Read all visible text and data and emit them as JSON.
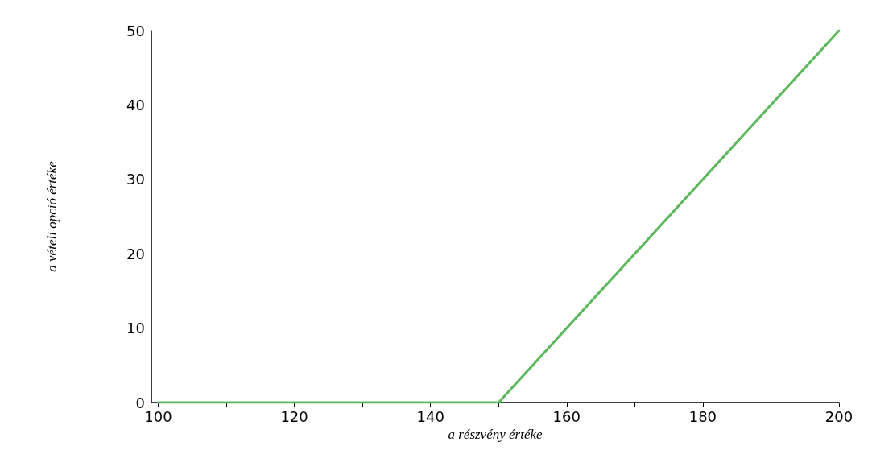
{
  "chart_data": {
    "type": "line",
    "xlabel": "a részvény értéke",
    "ylabel": "a vételi opció értéke",
    "x": [
      100,
      150,
      200
    ],
    "series": [
      {
        "color": "#5cb85c",
        "values": [
          0,
          0,
          50
        ]
      }
    ],
    "xlim": [
      99,
      200
    ],
    "ylim": [
      0,
      50
    ],
    "xticks": [
      100,
      {
        "value": 110,
        "label": null
      },
      120,
      {
        "value": 130,
        "label": null
      },
      140,
      {
        "value": 150,
        "label": null
      },
      160,
      {
        "value": 170,
        "label": null
      },
      180,
      {
        "value": 190,
        "label": null
      },
      200
    ],
    "yticks": [
      0,
      {
        "value": 5,
        "label": null
      },
      10,
      {
        "value": 15,
        "label": null
      },
      20,
      {
        "value": 25,
        "label": null
      },
      30,
      {
        "value": 35,
        "label": null
      },
      40,
      {
        "value": 45,
        "label": null
      },
      50
    ],
    "grid": false,
    "marker": "none",
    "line_style": "solid"
  }
}
